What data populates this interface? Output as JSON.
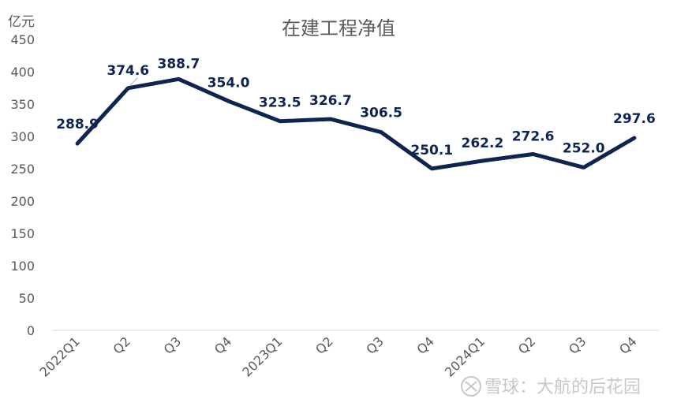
{
  "chart_data": {
    "type": "line",
    "title": "在建工程净值",
    "unit_label": "亿元",
    "categories": [
      "2022Q1",
      "Q2",
      "Q3",
      "Q4",
      "2023Q1",
      "Q2",
      "Q3",
      "Q4",
      "2024Q1",
      "Q2",
      "Q3",
      "Q4"
    ],
    "values": [
      288.9,
      374.6,
      388.7,
      354.0,
      323.5,
      326.7,
      306.5,
      250.1,
      262.2,
      272.6,
      252.0,
      297.6
    ],
    "data_labels": [
      "288.9",
      "374.6",
      "388.7",
      "354.0",
      "323.5",
      "326.7",
      "306.5",
      "250.1",
      "262.2",
      "272.6",
      "252.0",
      "297.6"
    ],
    "ylim": [
      0,
      450
    ],
    "yticks": [
      0,
      50,
      100,
      150,
      200,
      250,
      300,
      350,
      400,
      450
    ],
    "grid": false,
    "line_color": "#0f2451"
  },
  "watermark": {
    "logo_text": "",
    "text": "雪球：大航的后花园"
  }
}
